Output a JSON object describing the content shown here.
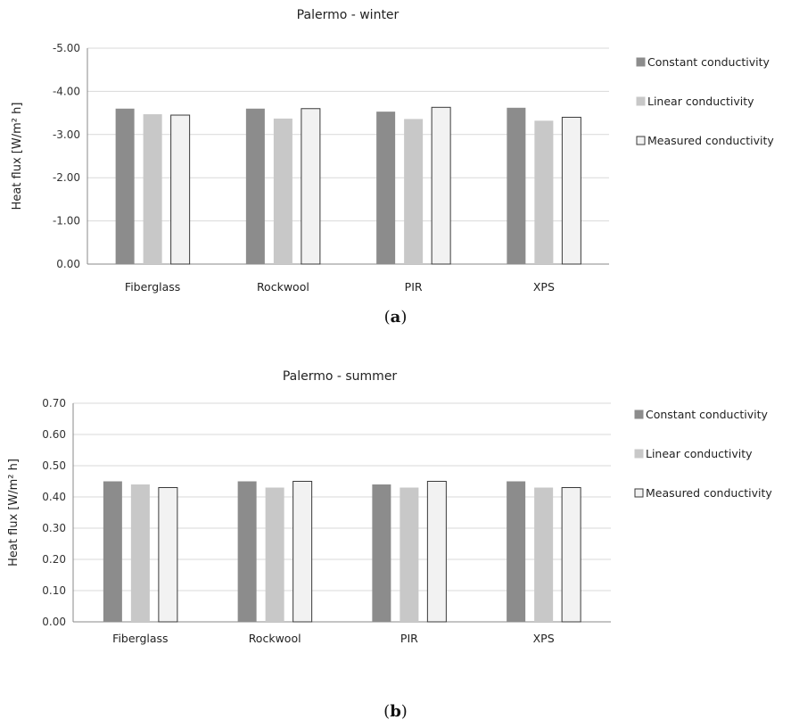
{
  "panel_labels": {
    "a_open": "(",
    "a": "a",
    "a_close": ")",
    "b_open": "(",
    "b": "b",
    "b_close": ")"
  },
  "colors": {
    "constant": "#8c8c8c",
    "linear": "#c8c8c8",
    "measured": "#f2f2f2",
    "measured_edge": "#3a3a3a"
  },
  "chart_data": [
    {
      "type": "bar",
      "title": "Palermo - winter",
      "ylabel": "Heat flux [W/m² h]",
      "categories": [
        "Fiberglass",
        "Rockwool",
        "PIR",
        "XPS"
      ],
      "ylim": [
        0,
        -5
      ],
      "yticks": [
        "0.00",
        "-1.00",
        "-2.00",
        "-3.00",
        "-4.00",
        "-5.00"
      ],
      "ytick_values": [
        0,
        -1,
        -2,
        -3,
        -4,
        -5
      ],
      "legend_position": "right",
      "grid": true,
      "series": [
        {
          "name": "Constant conductivity",
          "values": [
            -3.6,
            -3.6,
            -3.53,
            -3.62
          ]
        },
        {
          "name": "Linear conductivity",
          "values": [
            -3.47,
            -3.37,
            -3.36,
            -3.32
          ]
        },
        {
          "name": "Measured conductivity",
          "values": [
            -3.45,
            -3.6,
            -3.63,
            -3.4
          ]
        }
      ]
    },
    {
      "type": "bar",
      "title": "Palermo - summer",
      "ylabel": "Heat flux [W/m² h]",
      "categories": [
        "Fiberglass",
        "Rockwool",
        "PIR",
        "XPS"
      ],
      "ylim": [
        0,
        0.7
      ],
      "yticks": [
        "0.00",
        "0.10",
        "0.20",
        "0.30",
        "0.40",
        "0.50",
        "0.60",
        "0.70"
      ],
      "ytick_values": [
        0,
        0.1,
        0.2,
        0.3,
        0.4,
        0.5,
        0.6,
        0.7
      ],
      "legend_position": "right",
      "grid": true,
      "series": [
        {
          "name": "Constant conductivity",
          "values": [
            0.45,
            0.45,
            0.44,
            0.45
          ]
        },
        {
          "name": "Linear conductivity",
          "values": [
            0.44,
            0.43,
            0.43,
            0.43
          ]
        },
        {
          "name": "Measured conductivity",
          "values": [
            0.43,
            0.45,
            0.45,
            0.43
          ]
        }
      ]
    }
  ]
}
